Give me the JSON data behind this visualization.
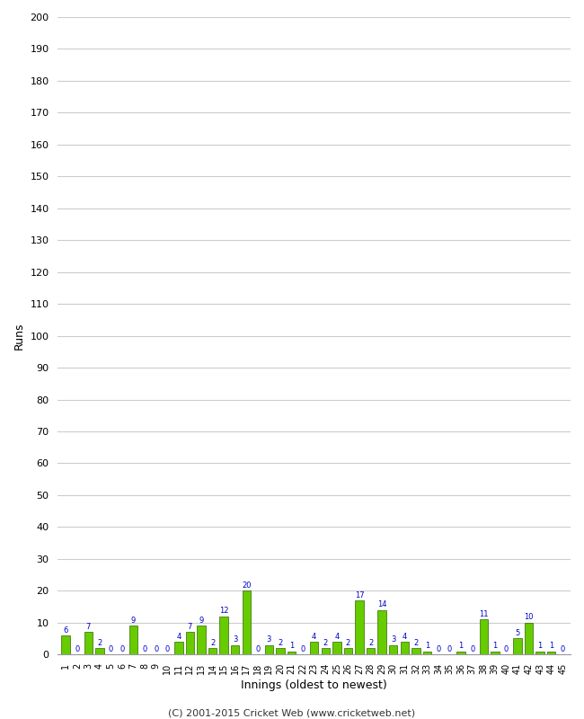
{
  "runs": [
    6,
    0,
    7,
    2,
    0,
    0,
    9,
    0,
    0,
    0,
    4,
    7,
    9,
    2,
    12,
    3,
    20,
    0,
    3,
    2,
    1,
    0,
    4,
    2,
    4,
    2,
    17,
    2,
    14,
    3,
    4,
    2,
    1,
    0,
    0,
    1,
    0,
    11,
    1,
    0,
    5,
    10,
    1,
    1,
    0
  ],
  "bar_color": "#66cc00",
  "bar_edge_color": "#336600",
  "label_color": "#0000cc",
  "bg_color": "#ffffff",
  "grid_color": "#cccccc",
  "ylabel": "Runs",
  "xlabel": "Innings (oldest to newest)",
  "footer": "(C) 2001-2015 Cricket Web (www.cricketweb.net)",
  "ylim": [
    0,
    200
  ],
  "yticks": [
    0,
    10,
    20,
    30,
    40,
    50,
    60,
    70,
    80,
    90,
    100,
    110,
    120,
    130,
    140,
    150,
    160,
    170,
    180,
    190,
    200
  ]
}
